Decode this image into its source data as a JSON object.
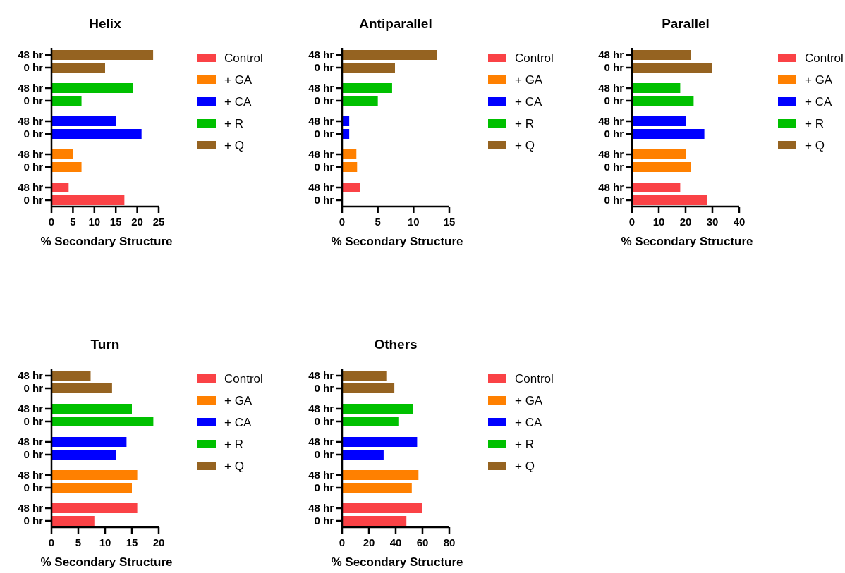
{
  "chart_data": [
    {
      "type": "bar",
      "orientation": "horizontal",
      "title": "Helix",
      "xlabel": "% Secondary Structure",
      "categories": [
        "48 hr",
        "0 hr",
        "48 hr",
        "0 hr",
        "48 hr",
        "0 hr",
        "48 hr",
        "0 hr",
        "48 hr",
        "0 hr"
      ],
      "xlim": [
        0,
        25
      ],
      "xticks": [
        0,
        5,
        10,
        15,
        20,
        25
      ],
      "legend": "right",
      "series": [
        {
          "name": "Control",
          "color": "#fa4246",
          "values": [
            null,
            null,
            null,
            null,
            null,
            null,
            null,
            null,
            4,
            17
          ]
        },
        {
          "name": "+ GA",
          "color": "#ff8000",
          "values": [
            null,
            null,
            null,
            null,
            null,
            null,
            5,
            7,
            null,
            null
          ]
        },
        {
          "name": "+ CA",
          "color": "#0000ff",
          "values": [
            null,
            null,
            null,
            null,
            15,
            21,
            null,
            null,
            null,
            null
          ]
        },
        {
          "name": "+ R",
          "color": "#00c000",
          "values": [
            null,
            null,
            19,
            7,
            null,
            null,
            null,
            null,
            null,
            null
          ]
        },
        {
          "name": "+ Q",
          "color": "#956321",
          "values": [
            23.7,
            12.5,
            null,
            null,
            null,
            null,
            null,
            null,
            null,
            null
          ]
        }
      ]
    },
    {
      "type": "bar",
      "orientation": "horizontal",
      "title": "Antiparallel",
      "xlabel": "% Secondary Structure",
      "categories": [
        "48 hr",
        "0 hr",
        "48 hr",
        "0 hr",
        "48 hr",
        "0 hr",
        "48 hr",
        "0 hr",
        "48 hr",
        "0 hr"
      ],
      "xlim": [
        0,
        15
      ],
      "xticks": [
        0,
        5,
        10,
        15
      ],
      "legend": "right",
      "series": [
        {
          "name": "Control",
          "color": "#fa4246",
          "values": [
            null,
            null,
            null,
            null,
            null,
            null,
            null,
            null,
            2.5,
            0
          ]
        },
        {
          "name": "+ GA",
          "color": "#ff8000",
          "values": [
            null,
            null,
            null,
            null,
            null,
            null,
            2,
            2.1,
            null,
            null
          ]
        },
        {
          "name": "+ CA",
          "color": "#0000ff",
          "values": [
            null,
            null,
            null,
            null,
            1,
            1,
            null,
            null,
            null,
            null
          ]
        },
        {
          "name": "+ R",
          "color": "#00c000",
          "values": [
            null,
            null,
            7,
            5,
            null,
            null,
            null,
            null,
            null,
            null
          ]
        },
        {
          "name": "+ Q",
          "color": "#956321",
          "values": [
            13.3,
            7.4,
            null,
            null,
            null,
            null,
            null,
            null,
            null,
            null
          ]
        }
      ]
    },
    {
      "type": "bar",
      "orientation": "horizontal",
      "title": "Parallel",
      "xlabel": "% Secondary Structure",
      "categories": [
        "48 hr",
        "0 hr",
        "48 hr",
        "0 hr",
        "48 hr",
        "0 hr",
        "48 hr",
        "0 hr",
        "48 hr",
        "0 hr"
      ],
      "xlim": [
        0,
        40
      ],
      "xticks": [
        0,
        10,
        20,
        30,
        40
      ],
      "legend": "right",
      "series": [
        {
          "name": "Control",
          "color": "#fa4246",
          "values": [
            null,
            null,
            null,
            null,
            null,
            null,
            null,
            null,
            18,
            28
          ]
        },
        {
          "name": "+ GA",
          "color": "#ff8000",
          "values": [
            null,
            null,
            null,
            null,
            null,
            null,
            20,
            22,
            null,
            null
          ]
        },
        {
          "name": "+ CA",
          "color": "#0000ff",
          "values": [
            null,
            null,
            null,
            null,
            20,
            27,
            null,
            null,
            null,
            null
          ]
        },
        {
          "name": "+ R",
          "color": "#00c000",
          "values": [
            null,
            null,
            18,
            23,
            null,
            null,
            null,
            null,
            null,
            null
          ]
        },
        {
          "name": "+ Q",
          "color": "#956321",
          "values": [
            22,
            30,
            null,
            null,
            null,
            null,
            null,
            null,
            null,
            null
          ]
        }
      ]
    },
    {
      "type": "bar",
      "orientation": "horizontal",
      "title": "Turn",
      "xlabel": "% Secondary Structure",
      "categories": [
        "48 hr",
        "0 hr",
        "48 hr",
        "0 hr",
        "48 hr",
        "0 hr",
        "48 hr",
        "0 hr",
        "48 hr",
        "0 hr"
      ],
      "xlim": [
        0,
        20
      ],
      "xticks": [
        0,
        5,
        10,
        15,
        20
      ],
      "legend": "right",
      "series": [
        {
          "name": "Control",
          "color": "#fa4246",
          "values": [
            null,
            null,
            null,
            null,
            null,
            null,
            null,
            null,
            16,
            8
          ]
        },
        {
          "name": "+ GA",
          "color": "#ff8000",
          "values": [
            null,
            null,
            null,
            null,
            null,
            null,
            16,
            15,
            null,
            null
          ]
        },
        {
          "name": "+ CA",
          "color": "#0000ff",
          "values": [
            null,
            null,
            null,
            null,
            14,
            12,
            null,
            null,
            null,
            null
          ]
        },
        {
          "name": "+ R",
          "color": "#00c000",
          "values": [
            null,
            null,
            15,
            19,
            null,
            null,
            null,
            null,
            null,
            null
          ]
        },
        {
          "name": "+ Q",
          "color": "#956321",
          "values": [
            7.3,
            11.3,
            null,
            null,
            null,
            null,
            null,
            null,
            null,
            null
          ]
        }
      ]
    },
    {
      "type": "bar",
      "orientation": "horizontal",
      "title": "Others",
      "xlabel": "% Secondary Structure",
      "categories": [
        "48 hr",
        "0 hr",
        "48 hr",
        "0 hr",
        "48 hr",
        "0 hr",
        "48 hr",
        "0 hr",
        "48 hr",
        "0 hr"
      ],
      "xlim": [
        0,
        80
      ],
      "xticks": [
        0,
        20,
        40,
        60,
        80
      ],
      "legend": "right",
      "series": [
        {
          "name": "Control",
          "color": "#fa4246",
          "values": [
            null,
            null,
            null,
            null,
            null,
            null,
            null,
            null,
            60,
            48
          ]
        },
        {
          "name": "+ GA",
          "color": "#ff8000",
          "values": [
            null,
            null,
            null,
            null,
            null,
            null,
            57,
            52,
            null,
            null
          ]
        },
        {
          "name": "+ CA",
          "color": "#0000ff",
          "values": [
            null,
            null,
            null,
            null,
            56,
            31,
            null,
            null,
            null,
            null
          ]
        },
        {
          "name": "+ R",
          "color": "#00c000",
          "values": [
            null,
            null,
            53,
            42,
            null,
            null,
            null,
            null,
            null,
            null
          ]
        },
        {
          "name": "+ Q",
          "color": "#956321",
          "values": [
            33,
            39,
            null,
            null,
            null,
            null,
            null,
            null,
            null,
            null
          ]
        }
      ]
    }
  ]
}
